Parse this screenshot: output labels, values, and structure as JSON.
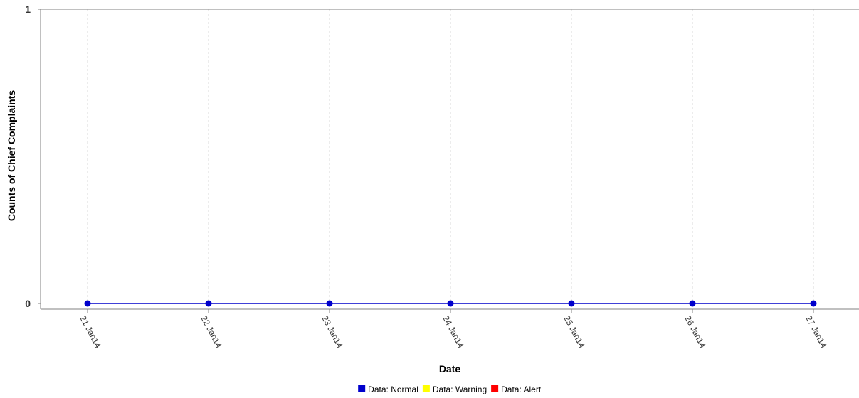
{
  "chart_data": {
    "type": "line",
    "title": "",
    "xlabel": "Date",
    "ylabel": "Counts of Chief Complaints",
    "categories": [
      "21 Jan14",
      "22 Jan14",
      "23 Jan14",
      "24 Jan14",
      "25 Jan14",
      "26 Jan14",
      "27 Jan14"
    ],
    "y_ticks": [
      "0",
      "1"
    ],
    "ylim": [
      0,
      1
    ],
    "grid": "vertical-dashed",
    "legend_position": "bottom-center",
    "series": [
      {
        "name": "Data: Normal",
        "color": "#0000cc",
        "values": [
          0,
          0,
          0,
          0,
          0,
          0,
          0
        ]
      }
    ],
    "legend": [
      {
        "label": "Data: Normal",
        "color": "#0000cc"
      },
      {
        "label": "Data: Warning",
        "color": "#ffff00"
      },
      {
        "label": "Data: Alert",
        "color": "#ff0000"
      }
    ]
  }
}
